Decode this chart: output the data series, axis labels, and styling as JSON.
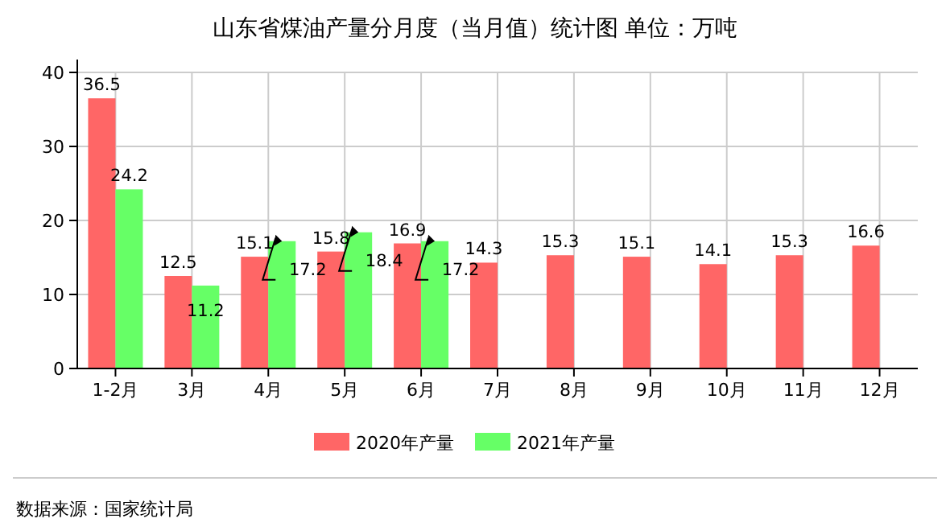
{
  "chart_data": {
    "type": "bar",
    "title": "山东省煤油产量分月度（当月值）统计图 单位：万吨",
    "categories": [
      "1-2月",
      "3月",
      "4月",
      "5月",
      "6月",
      "7月",
      "8月",
      "9月",
      "10月",
      "11月",
      "12月"
    ],
    "series": [
      {
        "name": "2020年产量",
        "color": "#ff6666",
        "values": [
          36.5,
          12.5,
          15.1,
          15.8,
          16.9,
          14.3,
          15.3,
          15.1,
          14.1,
          15.3,
          16.6
        ]
      },
      {
        "name": "2021年产量",
        "color": "#66ff66",
        "values": [
          24.2,
          11.2,
          17.2,
          18.4,
          17.2,
          null,
          null,
          null,
          null,
          null,
          null
        ]
      }
    ],
    "ylim": [
      0,
      40
    ],
    "yticks": [
      0,
      10,
      20,
      30,
      40
    ],
    "grid": true,
    "legend": "bottom",
    "data_labels": true,
    "annotations": [
      "数据来源：国家统计局"
    ]
  }
}
